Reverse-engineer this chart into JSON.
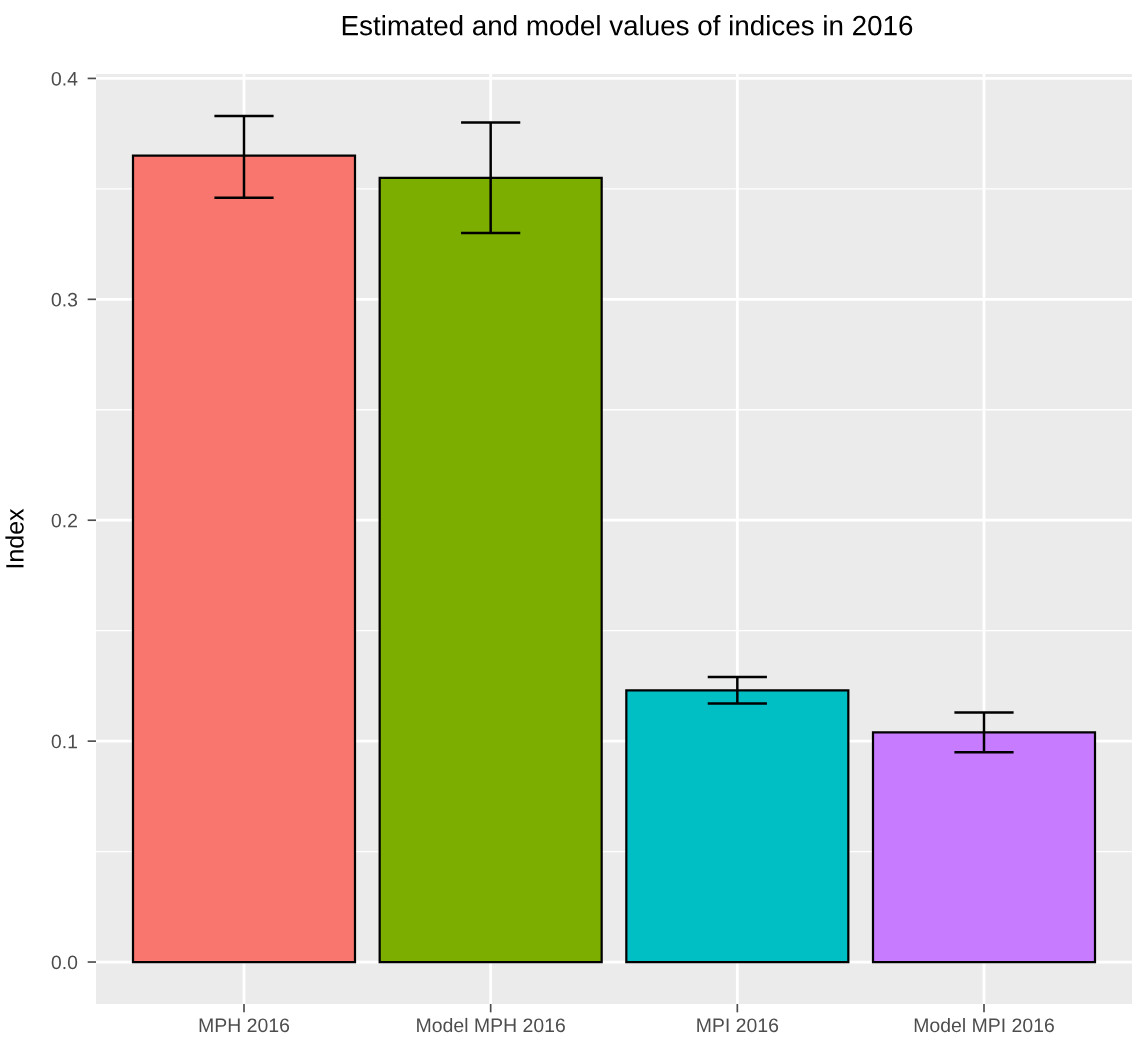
{
  "chart_data": {
    "type": "bar",
    "title": "Estimated and model values of indices in 2016",
    "ylabel": "Index",
    "categories": [
      "MPH 2016",
      "Model MPH 2016",
      "MPI 2016",
      "Model MPI 2016"
    ],
    "values": [
      0.365,
      0.355,
      0.123,
      0.104
    ],
    "colors": [
      "#f8766d",
      "#7cae00",
      "#00bfc4",
      "#c77cff"
    ],
    "errors": [
      [
        0.346,
        0.383
      ],
      [
        0.33,
        0.38
      ],
      [
        0.117,
        0.129
      ],
      [
        0.095,
        0.113
      ]
    ],
    "ylim": [
      -0.019,
      0.402
    ],
    "yticks": [
      {
        "value": 0,
        "label": "0.0"
      },
      0.1,
      0.2,
      0.3,
      0.4
    ],
    "grid": true
  }
}
